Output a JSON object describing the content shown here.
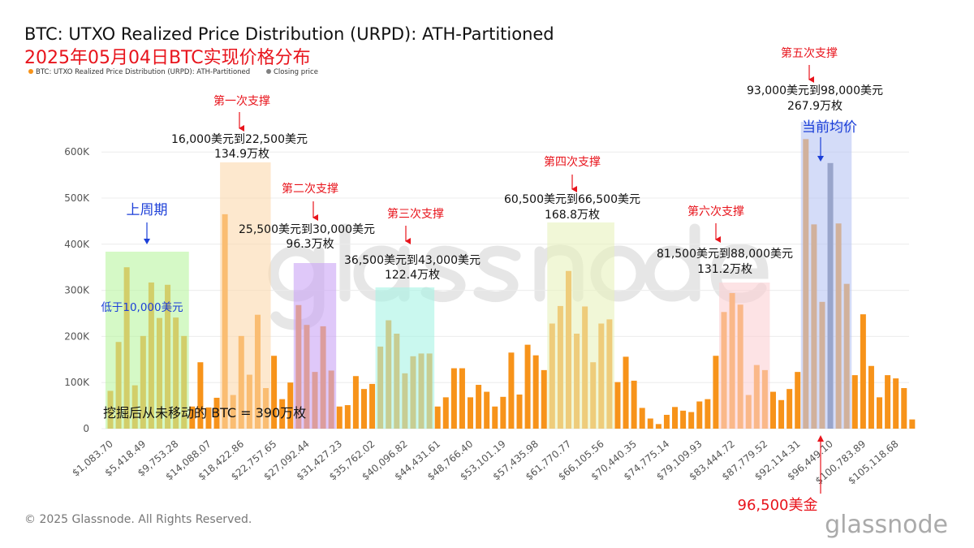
{
  "header": {
    "title": "BTC: UTXO Realized Price Distribution (URPD): ATH-Partitioned",
    "subtitle": "2025年05月04日BTC实现价格分布"
  },
  "legend": [
    {
      "label": "BTC: UTXO Realized Price Distribution (URPD): ATH-Partitioned",
      "color": "#f7931a"
    },
    {
      "label": "Closing price",
      "color": "#808080"
    }
  ],
  "footer": {
    "copyright": "© 2025 Glassnode. All Rights Reserved.",
    "logo": "glassnode",
    "watermark": "glassnode"
  },
  "annotations": {
    "s1": {
      "title": "第一次支撑",
      "range": "16,000美元到22,500美元",
      "amount": "134.9万枚"
    },
    "s2": {
      "title": "第二次支撑",
      "range": "25,500美元到30,000美元",
      "amount": "96.3万枚"
    },
    "s3": {
      "title": "第三次支撑",
      "range": "36,500美元到43,000美元",
      "amount": "122.4万枚"
    },
    "s4": {
      "title": "第四次支撑",
      "range": "60,500美元到66,500美元",
      "amount": "168.8万枚"
    },
    "s5": {
      "title": "第五次支撑",
      "range": "93,000美元到98,000美元",
      "amount": "267.9万枚"
    },
    "s6": {
      "title": "第六次支撑",
      "range": "81,500美元到88,000美元",
      "amount": "131.2万枚"
    },
    "prev_cycle": "上周期",
    "below_10k": "低于10,000美元",
    "current_avg": "当前均价",
    "never_moved": "挖掘后从未移动的 BTC = 390万枚",
    "price_marker": "96,500美金"
  },
  "chart_data": {
    "type": "bar",
    "title": "BTC: UTXO Realized Price Distribution (URPD): ATH-Partitioned",
    "ylim": [
      0,
      650000
    ],
    "yticks": [
      "0",
      "100K",
      "200K",
      "300K",
      "400K",
      "500K",
      "600K"
    ],
    "grid": true,
    "legend_position": "top-left",
    "bin_width": 1083.7,
    "x_tick_labels": [
      "$1,083.70",
      "$5,418.49",
      "$9,753.28",
      "$14,088.07",
      "$18,422.86",
      "$22,757.65",
      "$27,092.44",
      "$31,427.23",
      "$35,762.02",
      "$40,096.82",
      "$44,431.61",
      "$48,766.40",
      "$53,101.19",
      "$57,435.98",
      "$61,770.77",
      "$66,105.56",
      "$70,440.35",
      "$74,775.14",
      "$79,109.93",
      "$83,444.72",
      "$87,779.52",
      "$92,114.31",
      "$96,449.10",
      "$100,783.89",
      "$105,118.68"
    ],
    "series": [
      {
        "name": "BTC: UTXO Realized Price Distribution (URPD): ATH-Partitioned",
        "values": [
          82000,
          188000,
          350000,
          94000,
          201000,
          317000,
          240000,
          312000,
          241000,
          201000,
          48000,
          144000,
          46000,
          67000,
          465000,
          73000,
          201000,
          117000,
          247000,
          88000,
          158000,
          64000,
          100000,
          268000,
          225000,
          123000,
          222000,
          126000,
          48000,
          51000,
          114000,
          86000,
          97000,
          178000,
          235000,
          206000,
          120000,
          157000,
          163000,
          163000,
          48000,
          68000,
          131000,
          131000,
          68000,
          95000,
          80000,
          48000,
          69000,
          165000,
          74000,
          182000,
          159000,
          127000,
          228000,
          266000,
          342000,
          206000,
          265000,
          144000,
          228000,
          237000,
          101000,
          156000,
          104000,
          45000,
          22000,
          10000,
          30000,
          47000,
          39000,
          36000,
          59000,
          64000,
          158000,
          253000,
          294000,
          269000,
          73000,
          138000,
          127000,
          80000,
          62000,
          86000,
          123000,
          628000,
          443000,
          275000,
          576000,
          445000,
          314000,
          116000,
          248000,
          136000,
          68000,
          116000,
          109000,
          88000,
          20000
        ]
      },
      {
        "name": "Closing price",
        "bin_index": 88
      }
    ],
    "highlight_ranges": [
      {
        "from_bin": 0,
        "to_bin": 9,
        "color": "#b9f5a0"
      },
      {
        "from_bin": 14,
        "to_bin": 19,
        "color": "#fcd9ad"
      },
      {
        "from_bin": 23,
        "to_bin": 27,
        "color": "#c9a4f5"
      },
      {
        "from_bin": 33,
        "to_bin": 39,
        "color": "#a6f3e4"
      },
      {
        "from_bin": 54,
        "to_bin": 61,
        "color": "#e7f2bd"
      },
      {
        "from_bin": 75,
        "to_bin": 80,
        "color": "#fbd0d3"
      },
      {
        "from_bin": 85,
        "to_bin": 90,
        "color": "#b7c5f3"
      }
    ],
    "bar_color": "#f7931a",
    "closing_color": "#6d7690"
  }
}
